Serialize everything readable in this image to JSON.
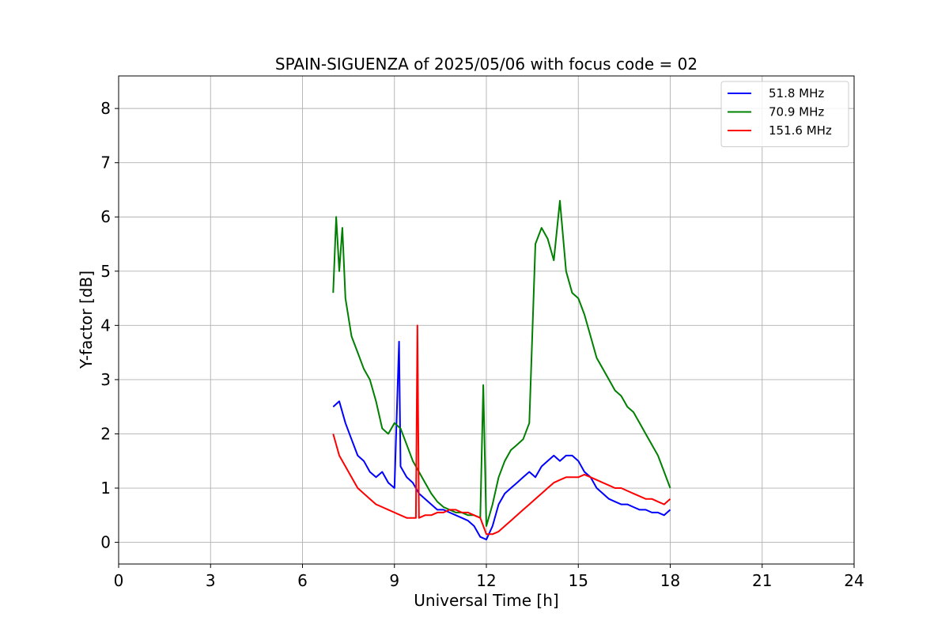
{
  "chart_data": {
    "type": "line",
    "title": "SPAIN-SIGUENZA of 2025/05/06 with focus code = 02",
    "xlabel": "Universal Time [h]",
    "ylabel": "Y-factor [dB]",
    "xlim": [
      0,
      24
    ],
    "ylim": [
      -0.4,
      8.6
    ],
    "xticks": [
      0,
      3,
      6,
      9,
      12,
      15,
      18,
      21,
      24
    ],
    "yticks": [
      0,
      1,
      2,
      3,
      4,
      5,
      6,
      7,
      8
    ],
    "grid": true,
    "legend_position": "top-right",
    "series": [
      {
        "name": "51.8 MHz",
        "color": "#0000ff",
        "x": [
          7.0,
          7.2,
          7.4,
          7.6,
          7.8,
          8.0,
          8.2,
          8.4,
          8.6,
          8.8,
          9.0,
          9.15,
          9.2,
          9.4,
          9.6,
          9.8,
          10.0,
          10.2,
          10.4,
          10.6,
          10.8,
          11.0,
          11.2,
          11.4,
          11.6,
          11.8,
          12.0,
          12.2,
          12.4,
          12.6,
          12.8,
          13.0,
          13.2,
          13.4,
          13.6,
          13.8,
          14.0,
          14.2,
          14.4,
          14.6,
          14.8,
          15.0,
          15.2,
          15.4,
          15.6,
          15.8,
          16.0,
          16.2,
          16.4,
          16.6,
          16.8,
          17.0,
          17.2,
          17.4,
          17.6,
          17.8,
          18.0
        ],
        "y": [
          2.5,
          2.6,
          2.2,
          1.9,
          1.6,
          1.5,
          1.3,
          1.2,
          1.3,
          1.1,
          1.0,
          3.7,
          1.4,
          1.2,
          1.1,
          0.9,
          0.8,
          0.7,
          0.6,
          0.6,
          0.55,
          0.5,
          0.45,
          0.4,
          0.3,
          0.1,
          0.05,
          0.3,
          0.7,
          0.9,
          1.0,
          1.1,
          1.2,
          1.3,
          1.2,
          1.4,
          1.5,
          1.6,
          1.5,
          1.6,
          1.6,
          1.5,
          1.3,
          1.2,
          1.0,
          0.9,
          0.8,
          0.75,
          0.7,
          0.7,
          0.65,
          0.6,
          0.6,
          0.55,
          0.55,
          0.5,
          0.6
        ]
      },
      {
        "name": "70.9 MHz",
        "color": "#008000",
        "x": [
          7.0,
          7.1,
          7.2,
          7.3,
          7.4,
          7.6,
          7.8,
          8.0,
          8.2,
          8.4,
          8.6,
          8.8,
          9.0,
          9.2,
          9.4,
          9.6,
          9.8,
          10.0,
          10.2,
          10.4,
          10.6,
          10.8,
          11.0,
          11.2,
          11.4,
          11.6,
          11.8,
          11.9,
          12.0,
          12.2,
          12.4,
          12.6,
          12.8,
          13.0,
          13.2,
          13.4,
          13.6,
          13.8,
          14.0,
          14.2,
          14.4,
          14.6,
          14.8,
          15.0,
          15.2,
          15.4,
          15.6,
          15.8,
          16.0,
          16.2,
          16.4,
          16.6,
          16.8,
          17.0,
          17.2,
          17.4,
          17.6,
          17.8,
          18.0
        ],
        "y": [
          4.6,
          6.0,
          5.0,
          5.8,
          4.5,
          3.8,
          3.5,
          3.2,
          3.0,
          2.6,
          2.1,
          2.0,
          2.2,
          2.1,
          1.8,
          1.5,
          1.3,
          1.1,
          0.9,
          0.75,
          0.65,
          0.6,
          0.55,
          0.55,
          0.5,
          0.5,
          0.45,
          2.9,
          0.3,
          0.7,
          1.2,
          1.5,
          1.7,
          1.8,
          1.9,
          2.2,
          5.5,
          5.8,
          5.6,
          5.2,
          6.3,
          5.0,
          4.6,
          4.5,
          4.2,
          3.8,
          3.4,
          3.2,
          3.0,
          2.8,
          2.7,
          2.5,
          2.4,
          2.2,
          2.0,
          1.8,
          1.6,
          1.3,
          1.0
        ]
      },
      {
        "name": "151.6 MHz",
        "color": "#ff0000",
        "x": [
          7.0,
          7.2,
          7.4,
          7.6,
          7.8,
          8.0,
          8.2,
          8.4,
          8.6,
          8.8,
          9.0,
          9.2,
          9.4,
          9.6,
          9.7,
          9.75,
          9.8,
          10.0,
          10.2,
          10.4,
          10.6,
          10.8,
          11.0,
          11.2,
          11.4,
          11.6,
          11.8,
          12.0,
          12.2,
          12.4,
          12.6,
          12.8,
          13.0,
          13.2,
          13.4,
          13.6,
          13.8,
          14.0,
          14.2,
          14.4,
          14.6,
          14.8,
          15.0,
          15.2,
          15.4,
          15.6,
          15.8,
          16.0,
          16.2,
          16.4,
          16.6,
          16.8,
          17.0,
          17.2,
          17.4,
          17.6,
          17.8,
          18.0
        ],
        "y": [
          2.0,
          1.6,
          1.4,
          1.2,
          1.0,
          0.9,
          0.8,
          0.7,
          0.65,
          0.6,
          0.55,
          0.5,
          0.45,
          0.45,
          0.45,
          4.0,
          0.45,
          0.5,
          0.5,
          0.55,
          0.55,
          0.6,
          0.6,
          0.55,
          0.55,
          0.5,
          0.45,
          0.15,
          0.15,
          0.2,
          0.3,
          0.4,
          0.5,
          0.6,
          0.7,
          0.8,
          0.9,
          1.0,
          1.1,
          1.15,
          1.2,
          1.2,
          1.2,
          1.25,
          1.2,
          1.15,
          1.1,
          1.05,
          1.0,
          1.0,
          0.95,
          0.9,
          0.85,
          0.8,
          0.8,
          0.75,
          0.7,
          0.8
        ]
      }
    ]
  }
}
